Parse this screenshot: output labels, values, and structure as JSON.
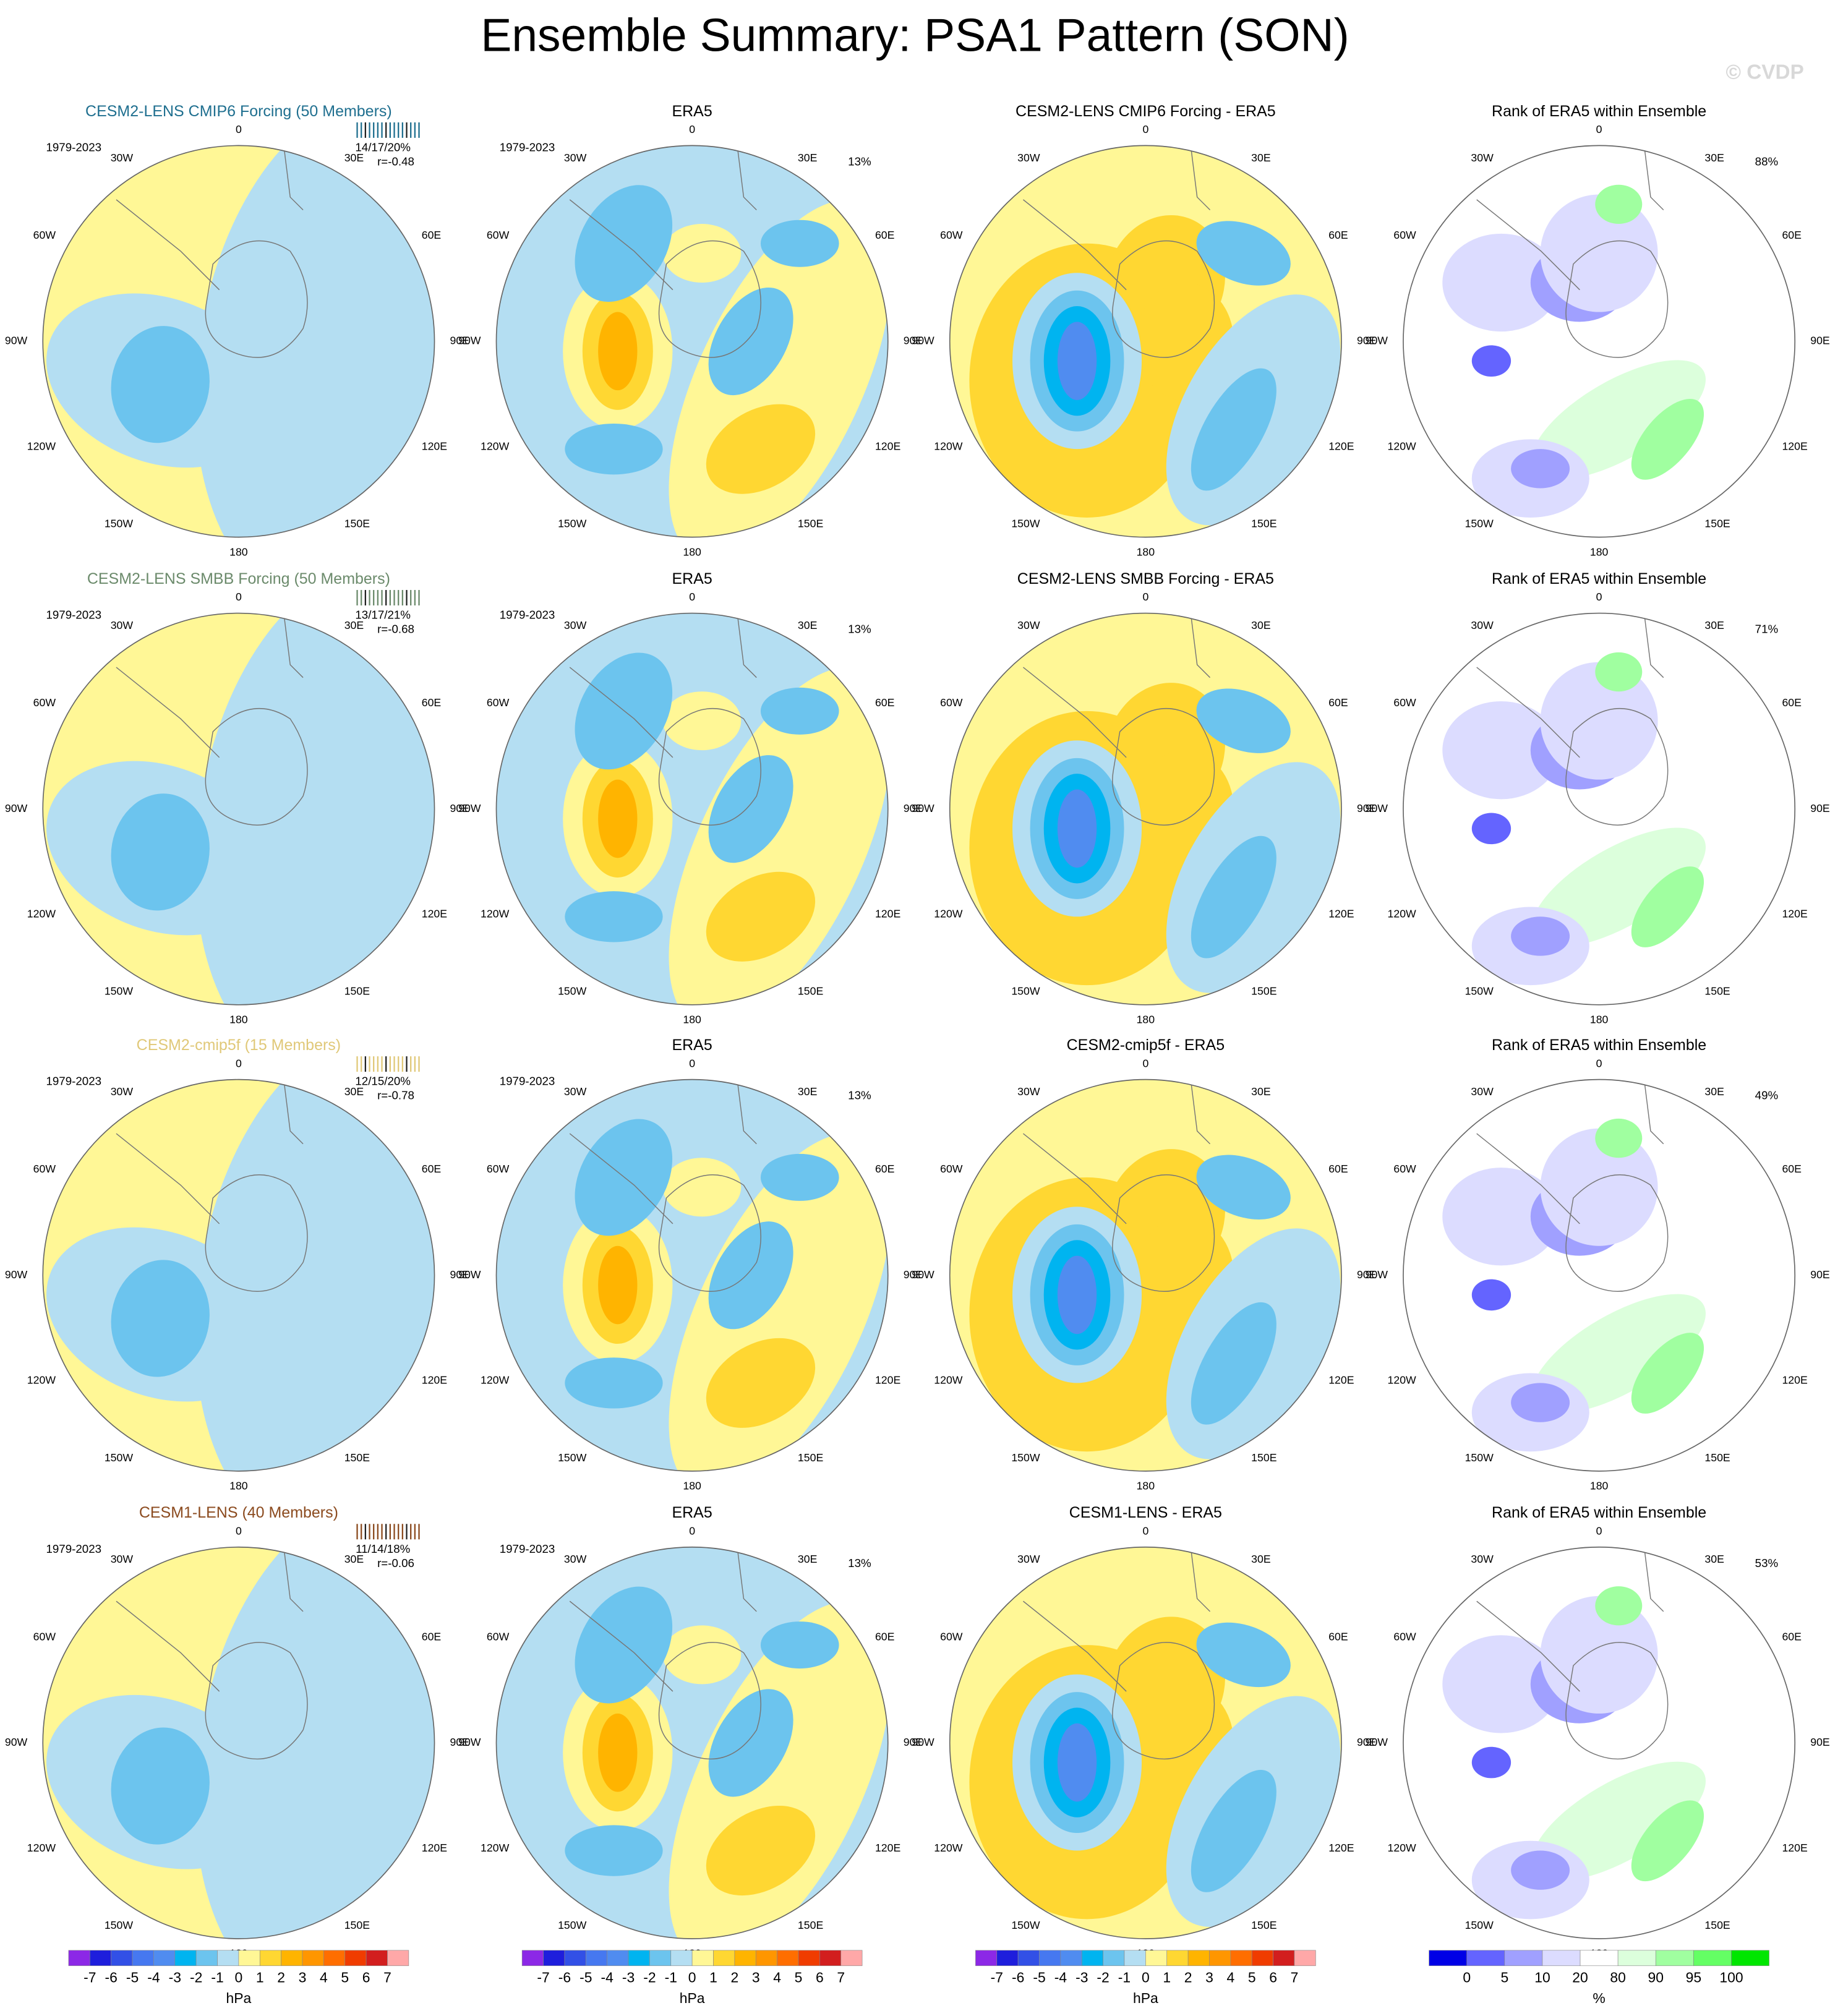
{
  "title": "Ensemble Summary: PSA1 Pattern (SON)",
  "watermark": "© CVDP",
  "longitude_labels": [
    "0",
    "30E",
    "60E",
    "90E",
    "120E",
    "150E",
    "180",
    "150W",
    "120W",
    "90W",
    "60W",
    "30W"
  ],
  "rows": [
    {
      "model": {
        "title": "CESM2-LENS CMIP6 Forcing (50 Members)",
        "color": "#1f6f8f",
        "years": "1979-2023",
        "stats": "14/17/20%",
        "corr": "r=-0.48"
      },
      "obs": {
        "title": "ERA5",
        "years": "1979-2023",
        "pct": "13%"
      },
      "diff": {
        "title": "CESM2-LENS CMIP6 Forcing - ERA5"
      },
      "rank": {
        "title": "Rank of ERA5 within Ensemble",
        "pct": "88%"
      }
    },
    {
      "model": {
        "title": "CESM2-LENS SMBB Forcing (50 Members)",
        "color": "#6b8a6b",
        "years": "1979-2023",
        "stats": "13/17/21%",
        "corr": "r=-0.68"
      },
      "obs": {
        "title": "ERA5",
        "years": "1979-2023",
        "pct": "13%"
      },
      "diff": {
        "title": "CESM2-LENS SMBB Forcing - ERA5"
      },
      "rank": {
        "title": "Rank of ERA5 within Ensemble",
        "pct": "71%"
      }
    },
    {
      "model": {
        "title": "CESM2-cmip5f (15 Members)",
        "color": "#e0c878",
        "years": "1979-2023",
        "stats": "12/15/20%",
        "corr": "r=-0.78"
      },
      "obs": {
        "title": "ERA5",
        "years": "1979-2023",
        "pct": "13%"
      },
      "diff": {
        "title": "CESM2-cmip5f - ERA5"
      },
      "rank": {
        "title": "Rank of ERA5 within Ensemble",
        "pct": "49%"
      }
    },
    {
      "model": {
        "title": "CESM1-LENS (40 Members)",
        "color": "#8b4a1e",
        "years": "1979-2023",
        "stats": "11/14/18%",
        "corr": "r=-0.06"
      },
      "obs": {
        "title": "ERA5",
        "years": "1979-2023",
        "pct": "13%"
      },
      "diff": {
        "title": "CESM1-LENS - ERA5"
      },
      "rank": {
        "title": "Rank of ERA5 within Ensemble",
        "pct": "53%"
      }
    }
  ],
  "colorbars": [
    {
      "labels": [
        -7,
        -6,
        -5,
        -4,
        -3,
        -2,
        -1,
        0,
        1,
        2,
        3,
        4,
        5,
        6,
        7
      ],
      "unit": "hPa",
      "colors": [
        "#8c28e6",
        "#1e1edc",
        "#3250e6",
        "#4678f0",
        "#508cf0",
        "#00b4f0",
        "#6cc4ee",
        "#b4def2",
        "#fff796",
        "#ffd732",
        "#ffb400",
        "#ff9600",
        "#ff6e00",
        "#f03c00",
        "#d21e1e",
        "#ffa8a8"
      ]
    },
    {
      "labels": [
        -7,
        -6,
        -5,
        -4,
        -3,
        -2,
        -1,
        0,
        1,
        2,
        3,
        4,
        5,
        6,
        7
      ],
      "unit": "hPa",
      "colors": [
        "#8c28e6",
        "#1e1edc",
        "#3250e6",
        "#4678f0",
        "#508cf0",
        "#00b4f0",
        "#6cc4ee",
        "#b4def2",
        "#fff796",
        "#ffd732",
        "#ffb400",
        "#ff9600",
        "#ff6e00",
        "#f03c00",
        "#d21e1e",
        "#ffa8a8"
      ]
    },
    {
      "labels": [
        -7,
        -6,
        -5,
        -4,
        -3,
        -2,
        -1,
        0,
        1,
        2,
        3,
        4,
        5,
        6,
        7
      ],
      "unit": "hPa",
      "colors": [
        "#8c28e6",
        "#1e1edc",
        "#3250e6",
        "#4678f0",
        "#508cf0",
        "#00b4f0",
        "#6cc4ee",
        "#b4def2",
        "#fff796",
        "#ffd732",
        "#ffb400",
        "#ff9600",
        "#ff6e00",
        "#f03c00",
        "#d21e1e",
        "#ffa8a8"
      ]
    },
    {
      "labels": [
        0,
        5,
        10,
        20,
        80,
        90,
        95,
        100
      ],
      "unit": "%",
      "colors": [
        "#0000e6",
        "#6464ff",
        "#a0a0ff",
        "#dcdcff",
        "#ffffff",
        "#dcffdc",
        "#a0ffa0",
        "#64ff64",
        "#00e600"
      ]
    }
  ]
}
